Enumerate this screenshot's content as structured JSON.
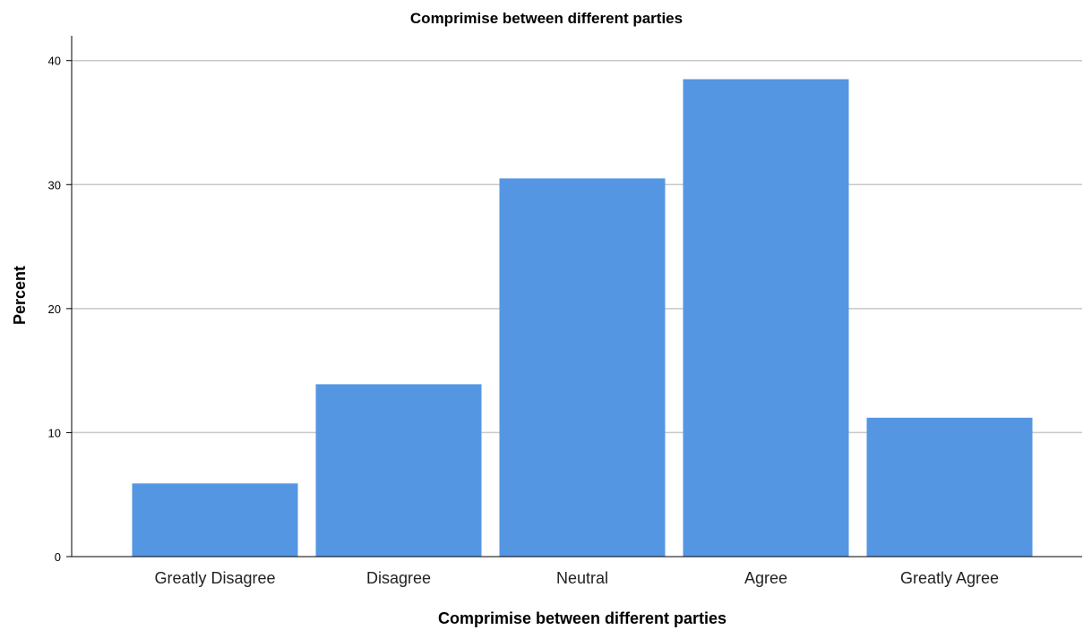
{
  "chart_data": {
    "type": "bar",
    "title": "Comprimise between different parties",
    "xlabel": "Comprimise between different parties",
    "ylabel": "Percent",
    "categories": [
      "Greatly Disagree",
      "Disagree",
      "Neutral",
      "Agree",
      "Greatly Agree"
    ],
    "values": [
      5.9,
      13.9,
      30.5,
      38.5,
      11.2
    ],
    "ylim": [
      0,
      42
    ],
    "yticks": [
      0,
      10,
      20,
      30,
      40
    ],
    "grid": true,
    "bar_color": "#5596e3",
    "grid_color": "#c8c8c8",
    "axis_color": "#000000"
  }
}
